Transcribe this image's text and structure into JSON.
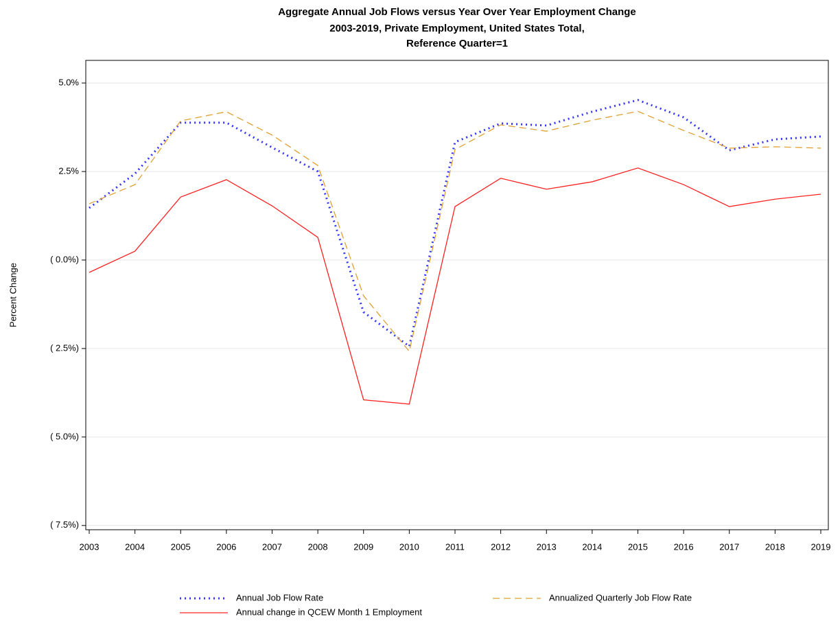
{
  "chart_data": {
    "type": "line",
    "title": "Aggregate Annual Job Flows versus Year Over Year Employment Change",
    "subtitle": [
      "2003-2019, Private Employment, United States Total,",
      "Reference Quarter=1"
    ],
    "y_label": "Percent Change",
    "x": [
      2003,
      2004,
      2005,
      2006,
      2007,
      2008,
      2009,
      2010,
      2011,
      2012,
      2013,
      2014,
      2015,
      2016,
      2017,
      2018,
      2019
    ],
    "xlim": [
      2002.925,
      2019.165
    ],
    "xticks": [
      2003,
      2004,
      2005,
      2006,
      2007,
      2008,
      2009,
      2010,
      2011,
      2012,
      2013,
      2014,
      2015,
      2016,
      2017,
      2018,
      2019
    ],
    "ylim": [
      -7.62,
      5.64
    ],
    "yticks": [
      {
        "value": 5,
        "label": "5.0%"
      },
      {
        "value": 2.5,
        "label": "2.5%"
      },
      {
        "value": 0,
        "label": "( 0.0%)"
      },
      {
        "value": -2.5,
        "label": "( 2.5%)"
      },
      {
        "value": -5,
        "label": "( 5.0%)"
      },
      {
        "value": -7.5,
        "label": "( 7.5%)"
      }
    ],
    "grid": true,
    "series": [
      {
        "name": "Annual Job Flow Rate",
        "color": "#3333ff",
        "dash": "2 5",
        "width": 3,
        "values": [
          1.47,
          2.44,
          3.88,
          3.88,
          3.18,
          2.5,
          -1.47,
          -2.44,
          3.33,
          3.86,
          3.8,
          4.19,
          4.52,
          4.03,
          3.1,
          3.41,
          3.49
        ]
      },
      {
        "name": "Annualized Quarterly Job Flow Rate",
        "color": "#e0a030",
        "dash": "10 6",
        "width": 1.3,
        "values": [
          1.59,
          2.13,
          3.93,
          4.19,
          3.53,
          2.67,
          -1.01,
          -2.58,
          3.12,
          3.82,
          3.64,
          3.95,
          4.2,
          3.66,
          3.16,
          3.2,
          3.16
        ]
      },
      {
        "name": "Annual change in QCEW Month 1 Employment",
        "color": "#ff2020",
        "dash": "none",
        "width": 1.3,
        "values": [
          -0.35,
          0.25,
          1.78,
          2.27,
          1.53,
          0.64,
          -3.95,
          -4.07,
          1.51,
          2.31,
          2.0,
          2.21,
          2.6,
          2.13,
          1.51,
          1.72,
          1.86
        ]
      }
    ]
  }
}
